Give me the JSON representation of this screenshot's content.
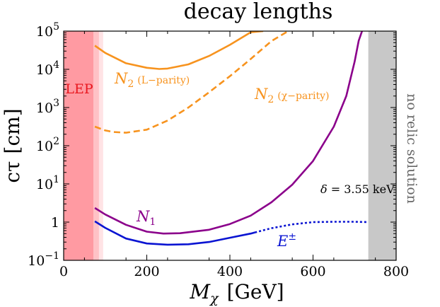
{
  "chart_data": {
    "type": "line",
    "title": "decay lengths",
    "xlabel": {
      "main": "M",
      "sub": "χ",
      "unit": "[GeV]"
    },
    "ylabel": {
      "main": "cτ",
      "unit": "[cm]"
    },
    "xlim": [
      0,
      800
    ],
    "ylim_log10": [
      -1,
      5
    ],
    "x_ticks": [
      {
        "value": 0,
        "label": "0"
      },
      {
        "value": 200,
        "label": "200"
      },
      {
        "value": 400,
        "label": "400"
      },
      {
        "value": 600,
        "label": "600"
      },
      {
        "value": 800,
        "label": "800"
      }
    ],
    "y_ticks": [
      {
        "exp": -1,
        "label": "10",
        "sup": "−1"
      },
      {
        "exp": 0,
        "label": "1",
        "sup": ""
      },
      {
        "exp": 1,
        "label": "10",
        "sup": "1"
      },
      {
        "exp": 2,
        "label": "10",
        "sup": "2"
      },
      {
        "exp": 3,
        "label": "10",
        "sup": "3"
      },
      {
        "exp": 4,
        "label": "10",
        "sup": "4"
      },
      {
        "exp": 5,
        "label": "10",
        "sup": "5"
      }
    ],
    "regions": [
      {
        "name": "LEP",
        "label": "LEP",
        "x": [
          0,
          72
        ],
        "color": "#ff9aa2"
      },
      {
        "name": "LEP-light",
        "label": "",
        "x": [
          72,
          85
        ],
        "color": "#ffc2c6"
      },
      {
        "name": "LEP-faint",
        "label": "",
        "x": [
          85,
          95
        ],
        "color": "#ffe3e5"
      },
      {
        "name": "no relic solution",
        "label": "no relic solution",
        "x": [
          733,
          800
        ],
        "color": "#c8c8c8"
      }
    ],
    "series": [
      {
        "name": "N2 (L-parity)",
        "label_main": "N",
        "label_sub": "2",
        "label_extra": "(L−parity)",
        "color": "#f7931e",
        "dash": "solid",
        "x": [
          75,
          100,
          150,
          200,
          230,
          250,
          300,
          350,
          400,
          450,
          480
        ],
        "y_log10": [
          4.62,
          4.43,
          4.16,
          4.04,
          4.01,
          4.02,
          4.13,
          4.35,
          4.64,
          4.97,
          5.0
        ]
      },
      {
        "name": "N2 (χ-parity)",
        "label_main": "N",
        "label_sub": "2",
        "label_extra": "(χ−parity)",
        "color": "#f7931e",
        "dash": "dashed",
        "x": [
          75,
          100,
          120,
          150,
          200,
          250,
          300,
          350,
          400,
          450,
          500,
          540
        ],
        "y_log10": [
          2.5,
          2.4,
          2.36,
          2.34,
          2.42,
          2.66,
          3.0,
          3.4,
          3.82,
          4.27,
          4.74,
          5.0
        ]
      },
      {
        "name": "N1",
        "label_main": "N",
        "label_sub": "1",
        "label_extra": "",
        "color": "#8b008b",
        "dash": "solid",
        "x": [
          75,
          100,
          150,
          200,
          240,
          280,
          350,
          400,
          450,
          500,
          550,
          600,
          650,
          680,
          700,
          710,
          718
        ],
        "y_log10": [
          0.37,
          0.2,
          -0.07,
          -0.25,
          -0.3,
          -0.29,
          -0.2,
          -0.05,
          0.17,
          0.52,
          0.98,
          1.6,
          2.5,
          3.3,
          4.2,
          4.75,
          5.0
        ]
      },
      {
        "name": "E±",
        "label_main": "E",
        "label_sub": "",
        "label_extra": "±",
        "color": "#0a14d2",
        "dash": "solid",
        "x": [
          75,
          100,
          150,
          200,
          250,
          300,
          350,
          400,
          450,
          460
        ],
        "y_log10": [
          0.02,
          -0.15,
          -0.43,
          -0.56,
          -0.59,
          -0.58,
          -0.52,
          -0.41,
          -0.3,
          -0.27
        ]
      },
      {
        "name": "E± (dotted)",
        "label_main": "",
        "label_sub": "",
        "label_extra": "",
        "color": "#0a14d2",
        "dash": "dotted",
        "x": [
          460,
          500,
          550,
          600,
          650,
          700,
          733
        ],
        "y_log10": [
          -0.27,
          -0.16,
          -0.06,
          0.0,
          0.01,
          0.01,
          0.0
        ]
      }
    ],
    "annotations": [
      {
        "name": "delta",
        "symbol": "δ",
        "text": " = 3.55 keV",
        "color": "#000000"
      }
    ]
  }
}
